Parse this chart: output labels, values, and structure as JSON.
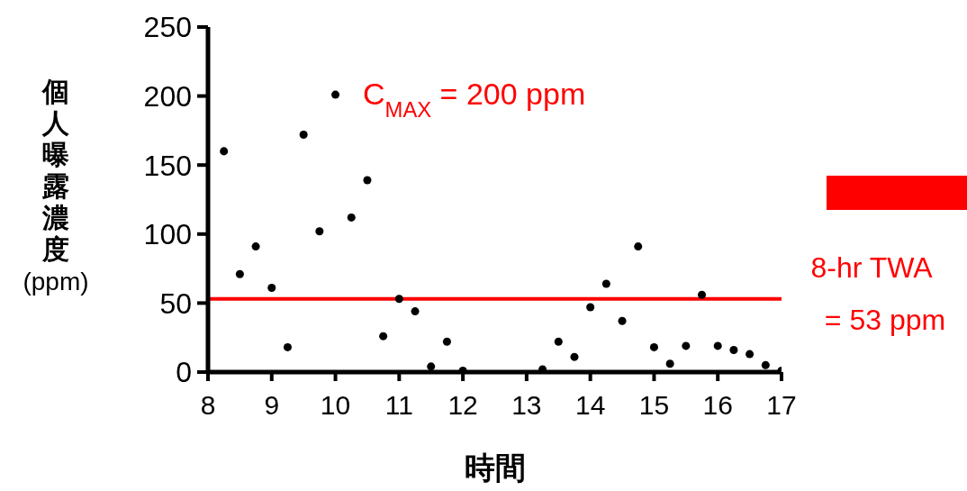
{
  "chart_data": {
    "type": "scatter",
    "xlabel": "時間",
    "ylabel": "個人曝露濃度 (ppm)",
    "x": [
      8.25,
      8.5,
      8.75,
      9,
      9.25,
      9.5,
      9.75,
      10,
      10.25,
      10.5,
      10.75,
      11,
      11.25,
      11.5,
      11.75,
      12,
      13.25,
      13.5,
      13.75,
      14,
      14.25,
      14.5,
      14.75,
      15,
      15.25,
      15.5,
      15.75,
      16,
      16.25,
      16.5,
      16.75,
      17
    ],
    "values": [
      160,
      71,
      91,
      61,
      18,
      172,
      102,
      201,
      112,
      139,
      26,
      53,
      44,
      4,
      22,
      1,
      2,
      22,
      11,
      47,
      64,
      37,
      91,
      18,
      6,
      19,
      56,
      19,
      16,
      13,
      5,
      1
    ],
    "color": "#000000",
    "marker": "circle",
    "xlim": [
      8,
      17
    ],
    "xticks": [
      8,
      9,
      10,
      11,
      12,
      13,
      14,
      15,
      16,
      17
    ],
    "ylim": [
      0,
      250
    ],
    "yticks": [
      0,
      50,
      100,
      150,
      200,
      250
    ],
    "grid": false,
    "legend": false,
    "ref_lines": [
      {
        "axis": "y",
        "value": 53,
        "label": "8-hr TWA = 53 ppm",
        "color": "#ff0000",
        "line_style": "solid"
      }
    ],
    "annotations": [
      "C$_{MAX}$ = 200 ppm"
    ]
  }
}
